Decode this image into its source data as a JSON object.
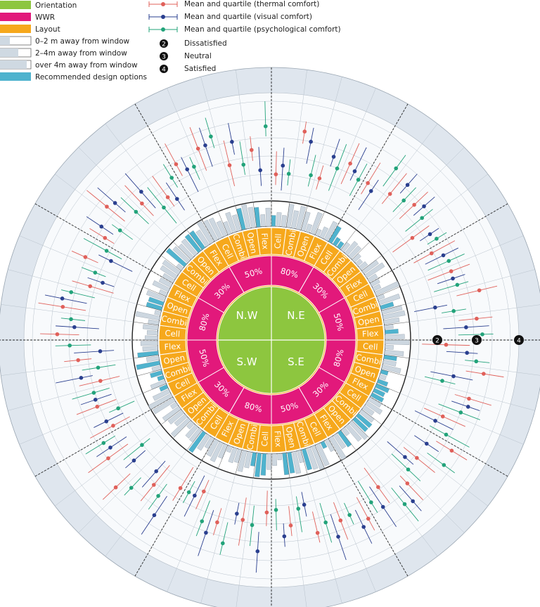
{
  "legend": {
    "orientation": "Orientation",
    "wwr": "WWR",
    "layout": "Layout",
    "zone1": "0–2 m away from window",
    "zone2": "2–4m away from window",
    "zone3": "over 4m away from window",
    "recommended": "Recommended design options",
    "thermal": "Mean and quartile (thermal comfort)",
    "visual": "Mean and quartile (visual comfort)",
    "psych": "Mean and quartile (psychological comfort)",
    "dissatisfied": "Dissatisfied",
    "neutral": "Neutral",
    "satisfied": "Satisfied",
    "num_dissatisfied": "2",
    "num_neutral": "3",
    "num_satisfied": "4"
  },
  "orientations": [
    "N.W",
    "N.E",
    "S.W",
    "S.E"
  ],
  "wwr_labels": [
    "80%",
    "30%",
    "50%",
    "80%",
    "30%",
    "50%",
    "80%",
    "30%",
    "50%",
    "80%",
    "30%",
    "50%"
  ],
  "layout_labels": [
    "Cell",
    "Combi",
    "Open",
    "Flex"
  ],
  "scale_markers": [
    "2",
    "3",
    "4"
  ],
  "colors": {
    "orientation": "#8dc63f",
    "wwr": "#e2197b",
    "layout": "#f6a81c",
    "recommended": "#4fb3ce",
    "thermal": "#e0605a",
    "visual": "#2a3f8f",
    "psych": "#22a37a",
    "outer_ring": "#dfe6ee",
    "grid": "#b8c2cc"
  }
}
